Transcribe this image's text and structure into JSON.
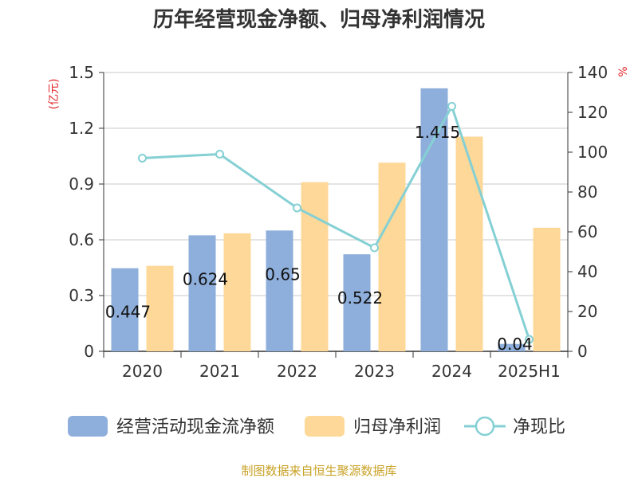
{
  "chart_data": {
    "type": "bar",
    "title": "历年经营现金净额、归母净利润情况",
    "categories": [
      "2020",
      "2021",
      "2022",
      "2023",
      "2024",
      "2025H1"
    ],
    "series": [
      {
        "name": "经营活动现金流净额",
        "kind": "bar",
        "axis": "left",
        "color": "#8eaedb",
        "values": [
          0.447,
          0.624,
          0.65,
          0.522,
          1.415,
          0.04
        ],
        "labels": [
          "0.447",
          "0.624",
          "0.65",
          "0.522",
          "1.415",
          "0.04"
        ]
      },
      {
        "name": "归母净利润",
        "kind": "bar",
        "axis": "left",
        "color": "#fdd898",
        "values": [
          0.46,
          0.635,
          0.91,
          1.015,
          1.155,
          0.665
        ]
      },
      {
        "name": "净现比",
        "kind": "line",
        "axis": "right",
        "color": "#85d0d4",
        "values": [
          97,
          99,
          72,
          52,
          123,
          6
        ]
      }
    ],
    "left_axis": {
      "unit": "(亿元)",
      "ylim": [
        0,
        1.5
      ],
      "ticks": [
        "0",
        "0.3",
        "0.6",
        "0.9",
        "1.2",
        "1.5"
      ]
    },
    "right_axis": {
      "unit": "%",
      "ylim": [
        0,
        140
      ],
      "ticks": [
        "0",
        "20",
        "40",
        "60",
        "80",
        "100",
        "120",
        "140"
      ]
    },
    "grid": true,
    "legend_position": "bottom"
  },
  "source": "制图数据来自恒生聚源数据库"
}
